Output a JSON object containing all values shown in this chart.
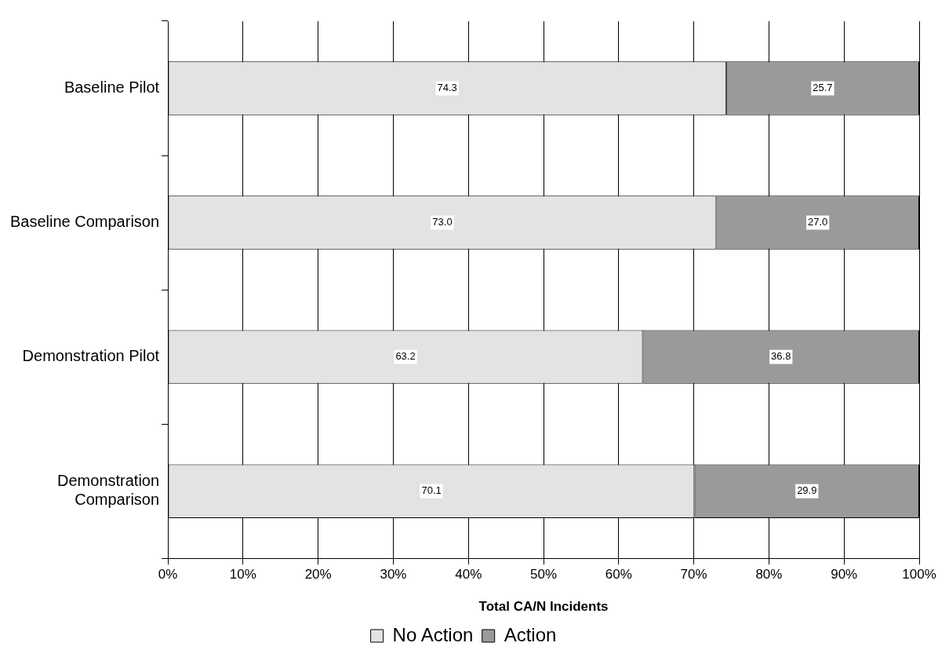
{
  "chart_data": {
    "type": "bar",
    "orientation": "horizontal",
    "stacked": true,
    "categories": [
      "Baseline Pilot",
      "Baseline Comparison",
      "Demonstration Pilot",
      "Demonstration Comparison"
    ],
    "series": [
      {
        "name": "No Action",
        "color": "#e3e3e3",
        "values": [
          74.3,
          73.0,
          63.2,
          70.1
        ]
      },
      {
        "name": "Action",
        "color": "#9a9a9a",
        "values": [
          25.7,
          27.0,
          36.8,
          29.9
        ]
      }
    ],
    "value_labels": [
      [
        "74.3",
        "73.0",
        "63.2",
        "70.1"
      ],
      [
        "25.7",
        "27.0",
        "36.8",
        "29.9"
      ]
    ],
    "xlabel": "Total CA/N Incidents",
    "xlim": [
      0,
      100
    ],
    "xticks": [
      {
        "value": 0,
        "label": "0%"
      },
      {
        "value": 10,
        "label": "10%"
      },
      {
        "value": 20,
        "label": "20%"
      },
      {
        "value": 30,
        "label": "30%"
      },
      {
        "value": 40,
        "label": "40%"
      },
      {
        "value": 50,
        "label": "50%"
      },
      {
        "value": 60,
        "label": "60%"
      },
      {
        "value": 70,
        "label": "70%"
      },
      {
        "value": 80,
        "label": "80%"
      },
      {
        "value": 90,
        "label": "90%"
      },
      {
        "value": 100,
        "label": "100%"
      }
    ],
    "grid": "x",
    "legend": "bottom"
  }
}
